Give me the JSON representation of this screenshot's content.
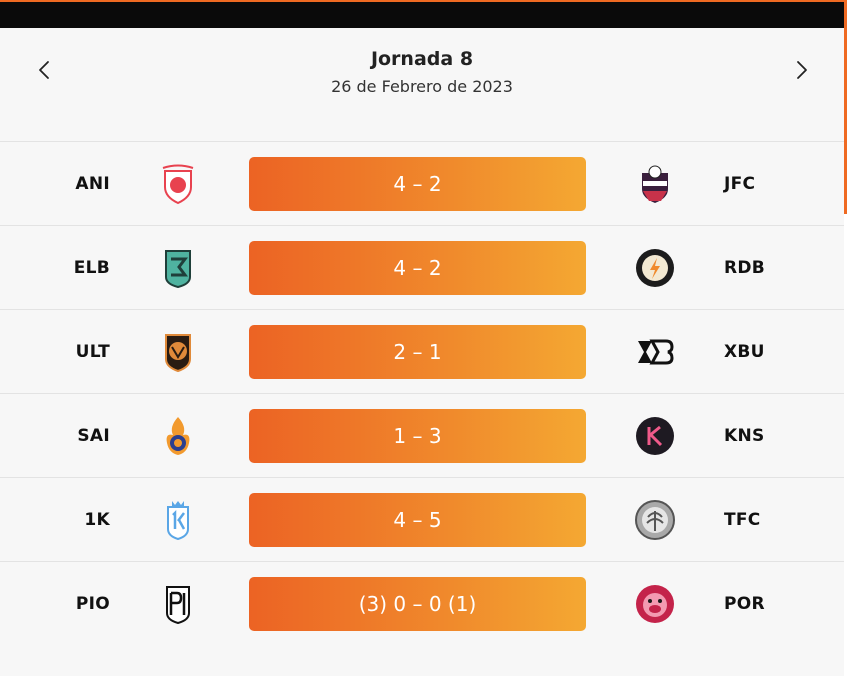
{
  "header": {
    "title": "Jornada 8",
    "date": "26 de Febrero de 2023",
    "prev_icon": "chevron-left-icon",
    "next_icon": "chevron-right-icon"
  },
  "colors": {
    "accent": "#ef6a22",
    "score_gradient_start": "#ec6324",
    "score_gradient_end": "#f4a832"
  },
  "matches": [
    {
      "home": "ANI",
      "away": "JFC",
      "score": "4 – 2",
      "home_logo": "ani-crest-icon",
      "away_logo": "jfc-crest-icon"
    },
    {
      "home": "ELB",
      "away": "RDB",
      "score": "4 – 2",
      "home_logo": "elb-crest-icon",
      "away_logo": "rdb-crest-icon"
    },
    {
      "home": "ULT",
      "away": "XBU",
      "score": "2 – 1",
      "home_logo": "ult-crest-icon",
      "away_logo": "xbu-crest-icon"
    },
    {
      "home": "SAI",
      "away": "KNS",
      "score": "1 – 3",
      "home_logo": "sai-crest-icon",
      "away_logo": "kns-crest-icon"
    },
    {
      "home": "1K",
      "away": "TFC",
      "score": "4 – 5",
      "home_logo": "1k-crest-icon",
      "away_logo": "tfc-crest-icon"
    },
    {
      "home": "PIO",
      "away": "POR",
      "score": "(3) 0 – 0 (1)",
      "home_logo": "pio-crest-icon",
      "away_logo": "por-crest-icon"
    }
  ]
}
